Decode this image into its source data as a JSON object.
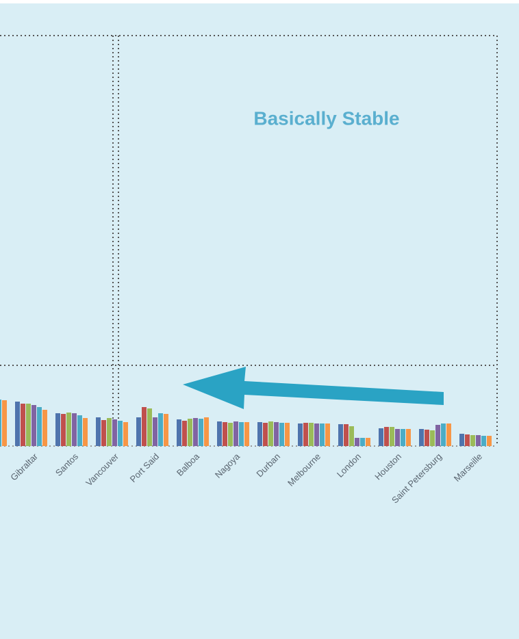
{
  "chart_data": {
    "type": "bar",
    "annotation": "Basically Stable",
    "categories": [
      null,
      "Gibraltar",
      "Santos",
      "Vancouver",
      "Port Said",
      "Balboa",
      "Nagoya",
      "Durban",
      "Melbourne",
      "London",
      "Houston",
      "Saint Petersburg",
      "Marseille"
    ],
    "series": [
      {
        "color": "#4f74ad",
        "values": [
          70,
          65,
          48,
          42,
          42,
          39,
          36,
          35,
          33,
          32,
          26,
          25,
          18
        ]
      },
      {
        "color": "#c0504d",
        "values": [
          70,
          62,
          47,
          38,
          57,
          37,
          35,
          34,
          34,
          32,
          28,
          24,
          17
        ]
      },
      {
        "color": "#9bbb59",
        "values": [
          70,
          62,
          49,
          41,
          55,
          40,
          34,
          36,
          34,
          29,
          28,
          23,
          16
        ]
      },
      {
        "color": "#8064a2",
        "values": [
          70,
          60,
          48,
          39,
          42,
          41,
          36,
          35,
          33,
          12,
          25,
          31,
          16
        ]
      },
      {
        "color": "#4bacc6",
        "values": [
          68,
          57,
          45,
          37,
          48,
          40,
          35,
          34,
          33,
          12,
          25,
          33,
          15
        ]
      },
      {
        "color": "#f79646",
        "values": [
          67,
          53,
          41,
          35,
          47,
          42,
          35,
          34,
          33,
          12,
          25,
          33,
          15
        ]
      }
    ],
    "ylim": [
      0,
      600
    ]
  }
}
